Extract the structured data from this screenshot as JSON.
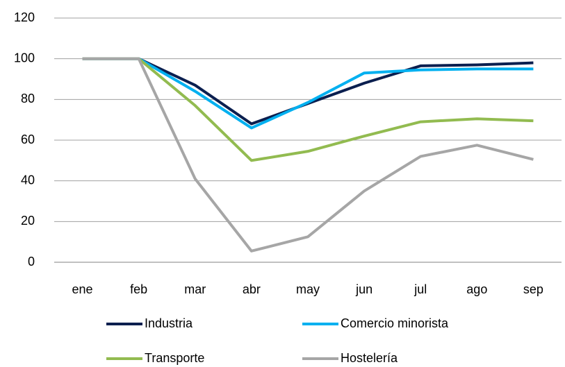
{
  "chart_data": {
    "type": "line",
    "categories": [
      "ene",
      "feb",
      "mar",
      "abr",
      "may",
      "jun",
      "jul",
      "ago",
      "sep"
    ],
    "series": [
      {
        "name": "Industria",
        "color": "#0b1f4f",
        "values": [
          100,
          100,
          87,
          68,
          78,
          88,
          96.5,
          97,
          98
        ]
      },
      {
        "name": "Comercio minorista",
        "color": "#00b0f0",
        "values": [
          100,
          100,
          84,
          66,
          78.5,
          93,
          94.5,
          95,
          95
        ]
      },
      {
        "name": "Transporte",
        "color": "#92bb50",
        "values": [
          100,
          100,
          77,
          50,
          54.5,
          62,
          69,
          70.5,
          69.5
        ]
      },
      {
        "name": "Hostelería",
        "color": "#a6a6a6",
        "values": [
          100,
          100,
          41,
          5.5,
          12.5,
          35,
          52,
          57.5,
          50.5
        ]
      }
    ],
    "ylim": [
      0,
      120
    ],
    "yticks": [
      0,
      20,
      40,
      60,
      80,
      100,
      120
    ],
    "grid": true,
    "legend": "bottom"
  }
}
